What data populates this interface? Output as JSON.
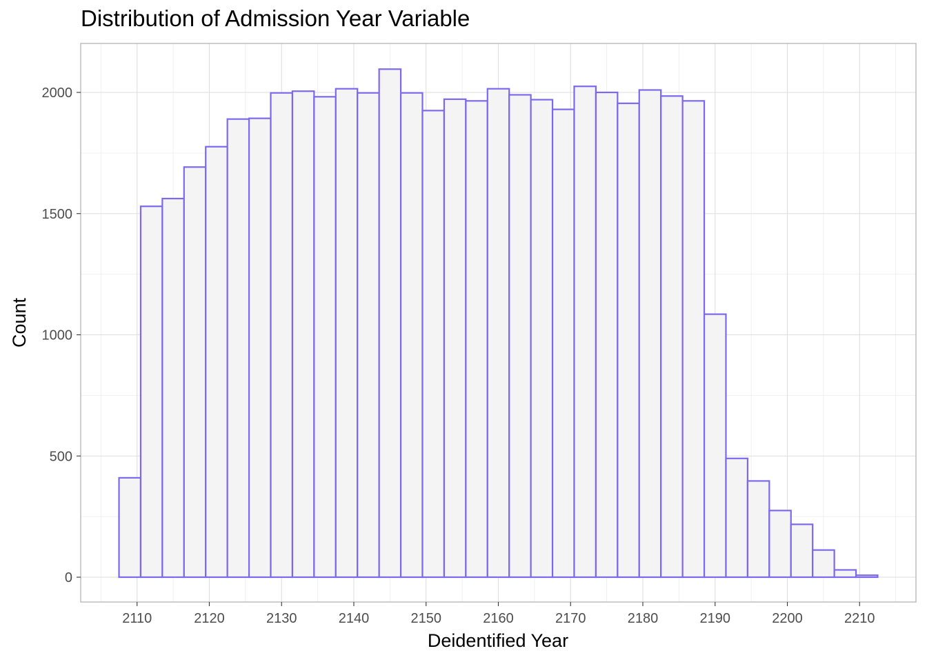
{
  "chart_data": {
    "type": "bar",
    "title": "Distribution of Admission Year Variable",
    "xlabel": "Deidentified Year",
    "ylabel": "Count",
    "xlim": [
      2102.2,
      2217.8
    ],
    "ylim": [
      0,
      2200
    ],
    "x_ticks": [
      2110,
      2120,
      2130,
      2140,
      2150,
      2160,
      2170,
      2180,
      2190,
      2200,
      2210
    ],
    "y_ticks": [
      0,
      500,
      1000,
      1500,
      2000
    ],
    "grid": true,
    "bin_width": 3,
    "bins": [
      {
        "x": 2109,
        "count": 410
      },
      {
        "x": 2112,
        "count": 1530
      },
      {
        "x": 2115,
        "count": 1562
      },
      {
        "x": 2118,
        "count": 1692
      },
      {
        "x": 2121,
        "count": 1776
      },
      {
        "x": 2124,
        "count": 1890
      },
      {
        "x": 2127,
        "count": 1893
      },
      {
        "x": 2130,
        "count": 1998
      },
      {
        "x": 2133,
        "count": 2005
      },
      {
        "x": 2136,
        "count": 1982
      },
      {
        "x": 2139,
        "count": 2015
      },
      {
        "x": 2142,
        "count": 1998
      },
      {
        "x": 2145,
        "count": 2096
      },
      {
        "x": 2148,
        "count": 1998
      },
      {
        "x": 2151,
        "count": 1925
      },
      {
        "x": 2154,
        "count": 1972
      },
      {
        "x": 2157,
        "count": 1965
      },
      {
        "x": 2160,
        "count": 2015
      },
      {
        "x": 2163,
        "count": 1990
      },
      {
        "x": 2166,
        "count": 1970
      },
      {
        "x": 2169,
        "count": 1930
      },
      {
        "x": 2172,
        "count": 2025
      },
      {
        "x": 2175,
        "count": 2000
      },
      {
        "x": 2178,
        "count": 1955
      },
      {
        "x": 2181,
        "count": 2010
      },
      {
        "x": 2184,
        "count": 1985
      },
      {
        "x": 2187,
        "count": 1965
      },
      {
        "x": 2190,
        "count": 1085
      },
      {
        "x": 2193,
        "count": 490
      },
      {
        "x": 2196,
        "count": 397
      },
      {
        "x": 2199,
        "count": 275
      },
      {
        "x": 2202,
        "count": 218
      },
      {
        "x": 2205,
        "count": 112
      },
      {
        "x": 2208,
        "count": 30
      },
      {
        "x": 2211,
        "count": 8
      }
    ],
    "colors": {
      "bar_fill": "#f4f4f4",
      "bar_stroke": "#7b68ee",
      "panel_border": "#b3b3b3",
      "grid_major": "#dedede",
      "grid_minor": "#ededed"
    }
  }
}
